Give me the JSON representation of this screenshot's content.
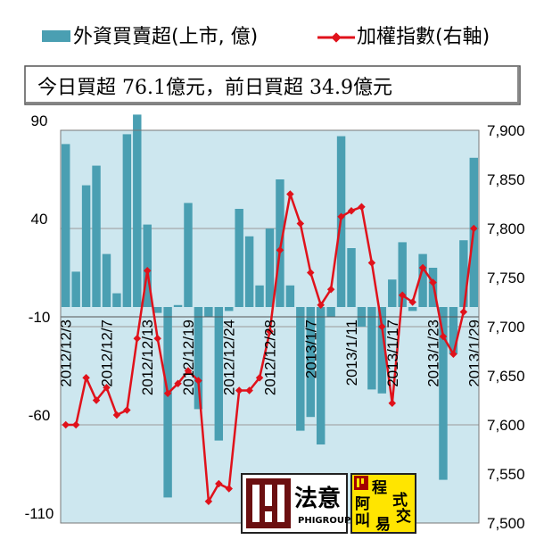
{
  "legend": {
    "bar_label": "外資買賣超(上市, 億)",
    "line_label": "加權指數(右軸)"
  },
  "note": "今日買超 76.1億元，前日買超 34.9億元",
  "logo": {
    "main_text": "法意",
    "sub_text": "PHIGROUP",
    "badge_chars": [
      "程",
      "式",
      "阿",
      "交",
      "叫",
      "易"
    ]
  },
  "colors": {
    "plot_background": "#cde7ef",
    "bar": "#4a9fb2",
    "line": "#e0121b",
    "grid": "#9a9a9a"
  },
  "chart_data": {
    "type": "bar+line",
    "x_tick_labels": [
      "2012/12/3",
      "2012/12/7",
      "2012/12/13",
      "2012/12/19",
      "2012/12/24",
      "2012/12/28",
      "2013/1/7",
      "2013/1/11",
      "2013/1/17",
      "2013/1/23",
      "2013/1/29"
    ],
    "x_tick_indices": [
      0,
      4,
      8,
      12,
      16,
      20,
      24,
      28,
      32,
      36,
      40
    ],
    "left_axis": {
      "ylim": [
        -110,
        90
      ],
      "ticks": [
        90,
        40,
        -10,
        -60,
        -110
      ]
    },
    "right_axis": {
      "ylim": [
        7500,
        7900
      ],
      "ticks": [
        7900,
        7850,
        7800,
        7750,
        7700,
        7650,
        7600,
        7550,
        7500
      ]
    },
    "series": [
      {
        "name": "外資買賣超(上市, 億)",
        "type": "bar",
        "axis": "left",
        "values": [
          83,
          18,
          62,
          72,
          27,
          7,
          88,
          98,
          42,
          -3,
          -97,
          1,
          53,
          -52,
          -5,
          -68,
          -2,
          50,
          36,
          11,
          40,
          65,
          11,
          -63,
          -56,
          -70,
          -5,
          87,
          30,
          -10,
          -42,
          -44,
          14,
          33,
          -2,
          27,
          20,
          -88,
          -24,
          34,
          76
        ]
      },
      {
        "name": "加權指數(右軸)",
        "type": "line",
        "axis": "right",
        "values": [
          7600,
          7600,
          7648,
          7625,
          7638,
          7610,
          7615,
          7688,
          7757,
          7688,
          7632,
          7642,
          7655,
          7645,
          7522,
          7540,
          7535,
          7635,
          7635,
          7648,
          7695,
          7778,
          7835,
          7805,
          7755,
          7722,
          7738,
          7812,
          7818,
          7822,
          7765,
          7700,
          7622,
          7732,
          7725,
          7760,
          7745,
          7690,
          7672,
          7715,
          7800
        ]
      }
    ]
  }
}
